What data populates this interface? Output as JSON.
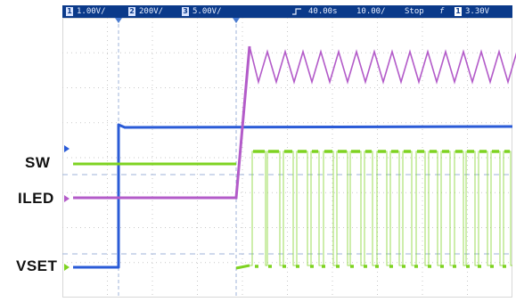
{
  "header": {
    "ch1_num": "1",
    "ch1_scale": "1.00V/",
    "ch2_num": "2",
    "ch2_scale": "200V/",
    "ch3_num": "3",
    "ch3_scale": "5.00V/",
    "delay": "40.00s",
    "timebase": "10.00/",
    "run_state": "Stop",
    "trigger_source": "1",
    "trigger_level": "3.30V"
  },
  "labels": {
    "sw": "SW",
    "iled": "ILED",
    "vset": "VSET"
  },
  "colors": {
    "topbar": "#0b3a8a",
    "grid": "#c9c9c9",
    "vset_trace": "#2a5bd7",
    "sw_trace": "#7ed321",
    "iled_trace": "#b35bc9"
  }
}
